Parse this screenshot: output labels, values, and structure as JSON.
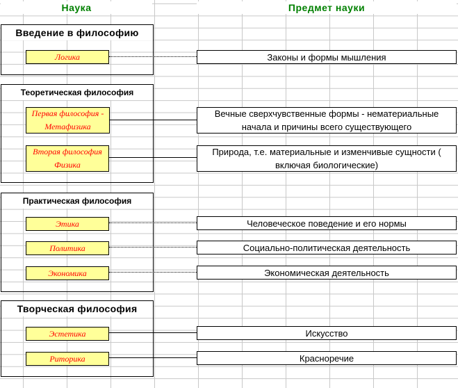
{
  "headers": {
    "science": "Наука",
    "subject": "Предмет науки"
  },
  "sections": [
    {
      "title": "Введение в философию"
    },
    {
      "title": "Теоретическая философия"
    },
    {
      "title": "Практическая философия"
    },
    {
      "title": "Творческая философия"
    }
  ],
  "rows": [
    {
      "science": "Логика",
      "subject": "Законы и формы мышления"
    },
    {
      "science": "Первая философия - Метафизика",
      "subject": "Вечные сверхчувственные формы - нематериальные начала и причины всего существующего"
    },
    {
      "science": "Вторая философия Физика",
      "subject": "Природа, т.е. материальные и изменчивые сущности ( включая биологические)"
    },
    {
      "science": "Этика",
      "subject": "Человеческое поведение и его нормы"
    },
    {
      "science": "Политика",
      "subject": "Социально-политическая деятельность"
    },
    {
      "science": "Экономика",
      "subject": "Экономическая деятельность"
    },
    {
      "science": "Эстетика",
      "subject": "Искусство"
    },
    {
      "science": "Риторика",
      "subject": "Красноречие"
    }
  ]
}
